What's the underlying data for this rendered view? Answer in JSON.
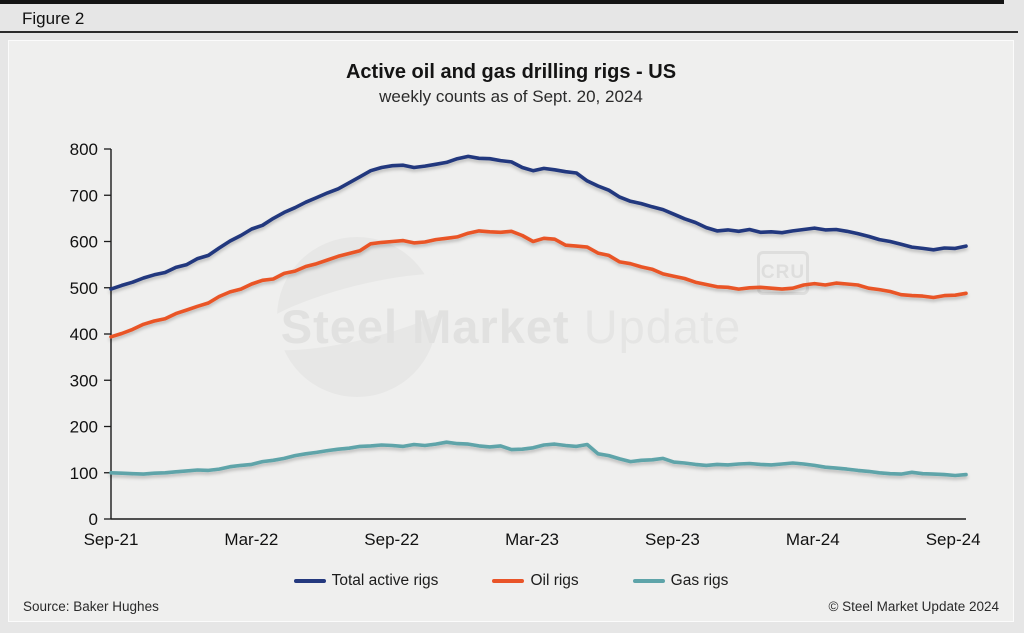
{
  "figure_label": "Figure 2",
  "title": "Active oil and gas drilling rigs - US",
  "subtitle": "weekly counts as of Sept. 20, 2024",
  "source": "Source: Baker Hughes",
  "copyright": "© Steel Market Update 2024",
  "watermark": {
    "text_bold": "Steel Market",
    "text_light": "Update",
    "cru_badge": "CRU"
  },
  "colors": {
    "total_rigs": "#24397e",
    "oil_rigs": "#e95428",
    "gas_rigs": "#5ea4a9",
    "axis": "#1a1a1a"
  },
  "chart_data": {
    "type": "line",
    "title": "Active oil and gas drilling rigs - US",
    "subtitle": "weekly counts as of Sept. 20, 2024",
    "xlabel": "",
    "ylabel": "",
    "ylim": [
      0,
      800
    ],
    "ytick_step": 100,
    "grid": false,
    "legend_position": "bottom",
    "x_axis": {
      "start": "2021-09-03",
      "end": "2024-09-20",
      "interval": "biweekly (values estimated from weekly chart)",
      "total_months": 36.55,
      "ticks": [
        {
          "label": "Sep-21",
          "month_offset": 0
        },
        {
          "label": "Mar-22",
          "month_offset": 6
        },
        {
          "label": "Sep-22",
          "month_offset": 12
        },
        {
          "label": "Mar-23",
          "month_offset": 18
        },
        {
          "label": "Sep-23",
          "month_offset": 24
        },
        {
          "label": "Mar-24",
          "month_offset": 30
        },
        {
          "label": "Sep-24",
          "month_offset": 36
        }
      ]
    },
    "series": [
      {
        "name": "Total active rigs",
        "color": "#24397e",
        "values": [
          497,
          505,
          512,
          521,
          528,
          533,
          544,
          550,
          563,
          570,
          586,
          601,
          613,
          627,
          635,
          650,
          663,
          673,
          685,
          695,
          705,
          714,
          727,
          740,
          753,
          760,
          764,
          765,
          760,
          763,
          767,
          771,
          779,
          784,
          780,
          779,
          775,
          772,
          760,
          753,
          758,
          755,
          751,
          748,
          731,
          720,
          711,
          696,
          687,
          682,
          675,
          669,
          659,
          649,
          641,
          630,
          623,
          625,
          622,
          626,
          620,
          621,
          619,
          623,
          626,
          629,
          625,
          626,
          622,
          617,
          611,
          604,
          600,
          594,
          588,
          585,
          582,
          586,
          585,
          590
        ]
      },
      {
        "name": "Oil rigs",
        "color": "#e95428",
        "values": [
          394,
          401,
          410,
          421,
          428,
          433,
          444,
          452,
          460,
          467,
          481,
          491,
          497,
          508,
          516,
          519,
          531,
          536,
          546,
          552,
          560,
          568,
          574,
          580,
          595,
          598,
          600,
          602,
          597,
          599,
          604,
          607,
          610,
          618,
          623,
          621,
          620,
          622,
          613,
          600,
          607,
          605,
          592,
          590,
          588,
          575,
          570,
          556,
          552,
          545,
          540,
          530,
          525,
          520,
          512,
          507,
          502,
          501,
          497,
          500,
          501,
          499,
          497,
          499,
          506,
          509,
          506,
          510,
          508,
          506,
          499,
          496,
          492,
          485,
          483,
          482,
          479,
          483,
          484,
          488
        ]
      },
      {
        "name": "Gas rigs",
        "color": "#5ea4a9",
        "values": [
          100,
          99,
          98,
          97,
          99,
          100,
          102,
          104,
          106,
          105,
          108,
          113,
          116,
          118,
          124,
          127,
          131,
          137,
          141,
          144,
          148,
          151,
          153,
          157,
          158,
          160,
          159,
          157,
          161,
          159,
          162,
          166,
          163,
          162,
          158,
          156,
          158,
          150,
          151,
          154,
          160,
          162,
          159,
          157,
          161,
          141,
          137,
          130,
          124,
          127,
          128,
          131,
          123,
          121,
          118,
          116,
          118,
          117,
          119,
          120,
          118,
          117,
          119,
          121,
          119,
          116,
          112,
          110,
          108,
          105,
          103,
          100,
          98,
          97,
          101,
          98,
          97,
          96,
          94,
          96
        ]
      }
    ]
  }
}
